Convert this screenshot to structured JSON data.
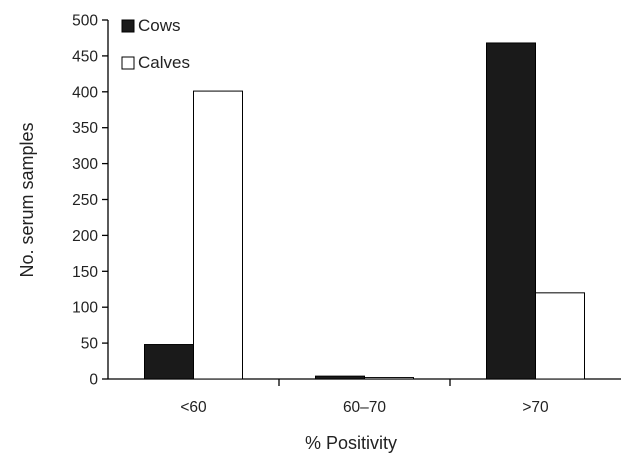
{
  "chart_data": {
    "type": "bar",
    "title": "",
    "xlabel": "% Positivity",
    "ylabel": "No. serum samples",
    "categories": [
      "<60",
      "60–70",
      ">70"
    ],
    "series": [
      {
        "name": "Cows",
        "values": [
          48,
          4,
          468
        ],
        "color": "#1a1a1a"
      },
      {
        "name": "Calves",
        "values": [
          401,
          2,
          120
        ],
        "color": "#ffffff"
      }
    ],
    "ylim": [
      0,
      500
    ],
    "yticks": [
      0,
      50,
      100,
      150,
      200,
      250,
      300,
      350,
      400,
      450,
      500
    ],
    "grid": false,
    "legend_position": "top-left"
  }
}
